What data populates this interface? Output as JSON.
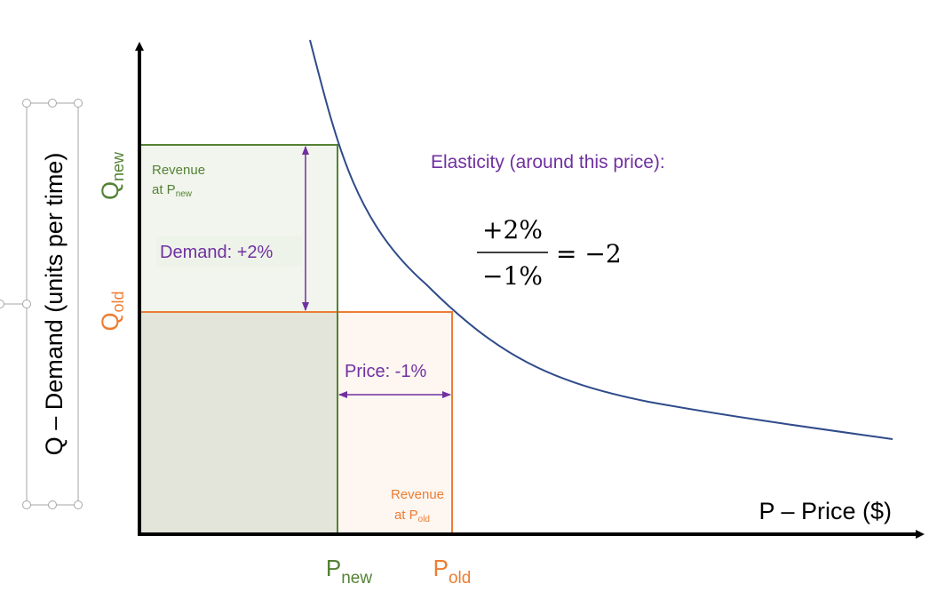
{
  "colors": {
    "axis": "#000000",
    "curve": "#2f4b8a",
    "new": "#548235",
    "old": "#ed7d31",
    "annotation": "#7030a0",
    "handle": "#a6a6a6"
  },
  "axes": {
    "y_label": "Q – Demand (units per time)",
    "x_label": "P – Price ($)"
  },
  "ticks": {
    "q_new": {
      "main": "Q",
      "sub": "new"
    },
    "q_old": {
      "main": "Q",
      "sub": "old"
    },
    "p_new": {
      "main": "P",
      "sub": "new"
    },
    "p_old": {
      "main": "P",
      "sub": "old"
    }
  },
  "regions": {
    "revenue_new": {
      "line1": "Revenue",
      "line2_main": "at P",
      "line2_sub": "new"
    },
    "revenue_old": {
      "line1": "Revenue",
      "line2_main": "at P",
      "line2_sub": "old"
    }
  },
  "annotations": {
    "demand_change": "Demand: +2%",
    "price_change": "Price: -1%",
    "elasticity_title": "Elasticity (around this price):",
    "formula": {
      "numerator": "+2%",
      "denominator": "−1%",
      "equals": "= −2"
    }
  }
}
